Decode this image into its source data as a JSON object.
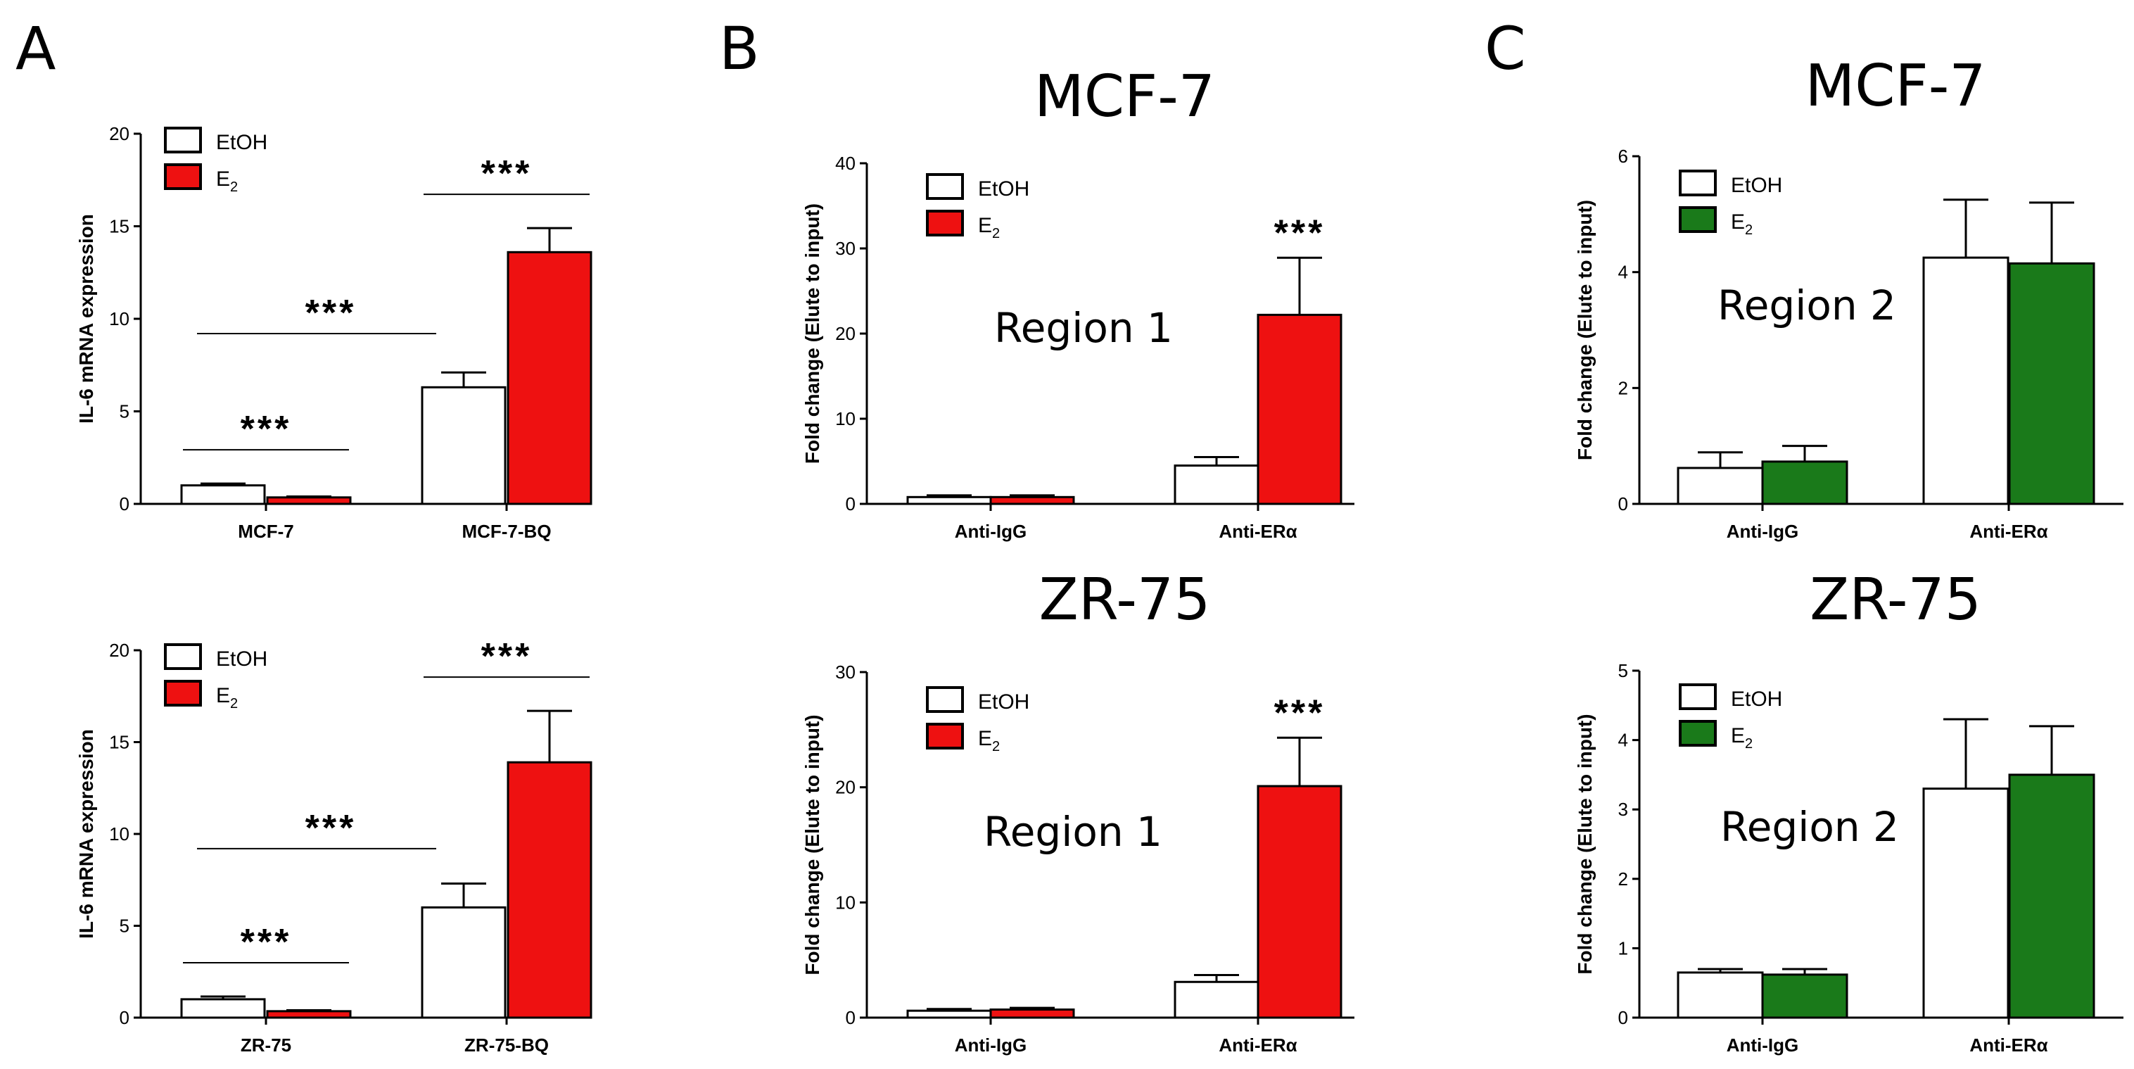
{
  "panels": [
    {
      "id": "A",
      "label": "A"
    },
    {
      "id": "B",
      "label": "B"
    },
    {
      "id": "C",
      "label": "C"
    }
  ],
  "chart_data": [
    {
      "id": "A-top",
      "panel": "A",
      "type": "bar",
      "title": "",
      "ylabel": "IL-6 mRNA expression",
      "xlabel": "",
      "ylim": [
        0,
        20
      ],
      "yticks": [
        "0",
        "5",
        "10",
        "15",
        "20"
      ],
      "categories": [
        "MCF-7",
        "MCF-7-BQ"
      ],
      "series": [
        {
          "name": "EtOH",
          "color": "#ffffff",
          "values": [
            1.0,
            6.3
          ],
          "errors": [
            0.1,
            0.8
          ]
        },
        {
          "name": "E2",
          "color": "#ee1111",
          "values": [
            0.35,
            13.6
          ],
          "errors": [
            0.05,
            1.3
          ]
        }
      ],
      "legend": {
        "placement": "top-left",
        "items": [
          {
            "name": "EtOH",
            "sub": ""
          },
          {
            "name": "E",
            "sub": "2"
          }
        ]
      },
      "annotations": [
        {
          "text": "***",
          "type": "pair",
          "cat": 0
        },
        {
          "text": "***",
          "type": "pair",
          "cat": 1
        },
        {
          "text": "***",
          "type": "across",
          "from": 0,
          "to": 1,
          "y": 9.2
        }
      ]
    },
    {
      "id": "A-bottom",
      "panel": "A",
      "type": "bar",
      "title": "",
      "ylabel": "IL-6 mRNA expression",
      "xlabel": "",
      "ylim": [
        0,
        20
      ],
      "yticks": [
        "0",
        "5",
        "10",
        "15",
        "20"
      ],
      "categories": [
        "ZR-75",
        "ZR-75-BQ"
      ],
      "series": [
        {
          "name": "EtOH",
          "color": "#ffffff",
          "values": [
            1.0,
            6.0
          ],
          "errors": [
            0.15,
            1.3
          ]
        },
        {
          "name": "E2",
          "color": "#ee1111",
          "values": [
            0.35,
            13.9
          ],
          "errors": [
            0.05,
            2.8
          ]
        }
      ],
      "legend": {
        "placement": "top-left",
        "items": [
          {
            "name": "EtOH",
            "sub": ""
          },
          {
            "name": "E",
            "sub": "2"
          }
        ]
      },
      "annotations": [
        {
          "text": "***",
          "type": "pair",
          "cat": 0
        },
        {
          "text": "***",
          "type": "pair",
          "cat": 1
        },
        {
          "text": "***",
          "type": "across",
          "from": 0,
          "to": 1,
          "y": 9.2
        }
      ]
    },
    {
      "id": "B-top",
      "panel": "B",
      "type": "bar",
      "title": "MCF-7",
      "region": "Region 1",
      "ylabel": "Fold change (Elute to input)",
      "xlabel": "",
      "ylim": [
        0,
        40
      ],
      "yticks": [
        "0",
        "10",
        "20",
        "30",
        "40"
      ],
      "categories": [
        "Anti-IgG",
        "Anti-ERα"
      ],
      "series": [
        {
          "name": "EtOH",
          "color": "#ffffff",
          "values": [
            0.8,
            4.5
          ],
          "errors": [
            0.2,
            1.0
          ]
        },
        {
          "name": "E2",
          "color": "#ee1111",
          "values": [
            0.8,
            22.2
          ],
          "errors": [
            0.2,
            6.7
          ]
        }
      ],
      "legend": {
        "placement": "top-left",
        "items": [
          {
            "name": "EtOH",
            "sub": ""
          },
          {
            "name": "E",
            "sub": "2"
          }
        ]
      },
      "annotations": [
        {
          "text": "***",
          "type": "bar",
          "cat": 1,
          "series": 1
        }
      ]
    },
    {
      "id": "B-bottom",
      "panel": "B",
      "type": "bar",
      "title": "ZR-75",
      "region": "Region 1",
      "ylabel": "Fold change (Elute to input)",
      "xlabel": "",
      "ylim": [
        0,
        30
      ],
      "yticks": [
        "0",
        "10",
        "20",
        "30"
      ],
      "categories": [
        "Anti-IgG",
        "Anti-ERα"
      ],
      "series": [
        {
          "name": "EtOH",
          "color": "#ffffff",
          "values": [
            0.6,
            3.1
          ],
          "errors": [
            0.15,
            0.6
          ]
        },
        {
          "name": "E2",
          "color": "#ee1111",
          "values": [
            0.7,
            20.1
          ],
          "errors": [
            0.15,
            4.2
          ]
        }
      ],
      "legend": {
        "placement": "top-left",
        "items": [
          {
            "name": "EtOH",
            "sub": ""
          },
          {
            "name": "E",
            "sub": "2"
          }
        ]
      },
      "annotations": [
        {
          "text": "***",
          "type": "bar",
          "cat": 1,
          "series": 1
        }
      ]
    },
    {
      "id": "C-top",
      "panel": "C",
      "type": "bar",
      "title": "MCF-7",
      "region": "Region 2",
      "ylabel": "Fold change (Elute to input)",
      "xlabel": "",
      "ylim": [
        0,
        6
      ],
      "yticks": [
        "0",
        "2",
        "4",
        "6"
      ],
      "categories": [
        "Anti-IgG",
        "Anti-ERα"
      ],
      "series": [
        {
          "name": "EtOH",
          "color": "#ffffff",
          "values": [
            0.62,
            4.25
          ],
          "errors": [
            0.27,
            1.0
          ]
        },
        {
          "name": "E2",
          "color": "#1a7a1a",
          "values": [
            0.73,
            4.15
          ],
          "errors": [
            0.27,
            1.05
          ]
        }
      ],
      "legend": {
        "placement": "top-left",
        "items": [
          {
            "name": "EtOH",
            "sub": ""
          },
          {
            "name": "E",
            "sub": "2"
          }
        ]
      },
      "annotations": []
    },
    {
      "id": "C-bottom",
      "panel": "C",
      "type": "bar",
      "title": "ZR-75",
      "region": "Region 2",
      "ylabel": "Fold change (Elute to input)",
      "xlabel": "",
      "ylim": [
        0,
        5
      ],
      "yticks": [
        "0",
        "1",
        "2",
        "3",
        "4",
        "5"
      ],
      "categories": [
        "Anti-IgG",
        "Anti-ERα"
      ],
      "series": [
        {
          "name": "EtOH",
          "color": "#ffffff",
          "values": [
            0.65,
            3.3
          ],
          "errors": [
            0.05,
            1.0
          ]
        },
        {
          "name": "E2",
          "color": "#1a7a1a",
          "values": [
            0.62,
            3.5
          ],
          "errors": [
            0.08,
            0.7
          ]
        }
      ],
      "legend": {
        "placement": "top-left",
        "items": [
          {
            "name": "EtOH",
            "sub": ""
          },
          {
            "name": "E",
            "sub": "2"
          }
        ]
      },
      "annotations": []
    }
  ]
}
